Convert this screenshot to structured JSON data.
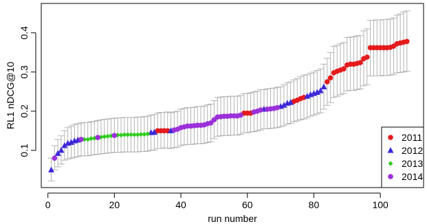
{
  "chart_data": {
    "type": "scatter",
    "title": "",
    "xlabel": "run number",
    "ylabel": "RL1 nDCG@10",
    "xlim": [
      -2,
      113
    ],
    "ylim": [
      0.005,
      0.475
    ],
    "x_ticks": [
      0,
      20,
      40,
      60,
      80,
      100
    ],
    "x_tick_labels": [
      "0",
      "20",
      "40",
      "60",
      "80",
      "100"
    ],
    "y_ticks": [
      0.1,
      0.2,
      0.3,
      0.4
    ],
    "y_tick_labels": [
      "0.1",
      "0.2",
      "0.3",
      "0.4"
    ],
    "error_bar_color": "#b3b3b3",
    "legend_position": "bottom-right",
    "legend": [
      {
        "label": "2011",
        "color": "#e41a1c",
        "marker": "circle"
      },
      {
        "label": "2012",
        "color": "#3c28d8",
        "marker": "triangle"
      },
      {
        "label": "2013",
        "color": "#2ecc1a",
        "marker": "diamond"
      },
      {
        "label": "2014",
        "color": "#9b30d9",
        "marker": "circle"
      }
    ],
    "series": [
      {
        "name": "2011",
        "color": "#e41a1c",
        "marker": "circle",
        "points": [
          [
            33,
            0.15
          ],
          [
            34,
            0.15
          ],
          [
            35,
            0.15
          ],
          [
            36,
            0.15
          ],
          [
            59,
            0.195
          ],
          [
            60,
            0.195
          ],
          [
            61,
            0.195
          ],
          [
            74,
            0.225
          ],
          [
            75,
            0.228
          ],
          [
            76,
            0.232
          ],
          [
            77,
            0.235
          ],
          [
            84,
            0.275
          ],
          [
            85,
            0.285
          ],
          [
            86,
            0.298
          ],
          [
            87,
            0.302
          ],
          [
            88,
            0.305
          ],
          [
            89,
            0.308
          ],
          [
            90,
            0.318
          ],
          [
            91,
            0.32
          ],
          [
            92,
            0.32
          ],
          [
            93,
            0.322
          ],
          [
            94,
            0.324
          ],
          [
            95,
            0.334
          ],
          [
            96,
            0.338
          ],
          [
            97,
            0.362
          ],
          [
            98,
            0.362
          ],
          [
            99,
            0.362
          ],
          [
            100,
            0.362
          ],
          [
            101,
            0.362
          ],
          [
            102,
            0.362
          ],
          [
            103,
            0.363
          ],
          [
            104,
            0.366
          ],
          [
            105,
            0.372
          ],
          [
            106,
            0.374
          ],
          [
            107,
            0.376
          ],
          [
            108,
            0.378
          ]
        ],
        "err": [
          [
            33,
            0.105,
            0.195
          ],
          [
            34,
            0.105,
            0.197
          ],
          [
            35,
            0.106,
            0.197
          ],
          [
            36,
            0.106,
            0.198
          ],
          [
            59,
            0.145,
            0.245
          ],
          [
            60,
            0.145,
            0.245
          ],
          [
            61,
            0.147,
            0.247
          ],
          [
            74,
            0.173,
            0.28
          ],
          [
            75,
            0.175,
            0.283
          ],
          [
            76,
            0.178,
            0.288
          ],
          [
            77,
            0.18,
            0.292
          ],
          [
            84,
            0.215,
            0.335
          ],
          [
            85,
            0.222,
            0.35
          ],
          [
            86,
            0.235,
            0.365
          ],
          [
            87,
            0.238,
            0.368
          ],
          [
            88,
            0.242,
            0.372
          ],
          [
            89,
            0.245,
            0.375
          ],
          [
            90,
            0.252,
            0.388
          ],
          [
            91,
            0.253,
            0.389
          ],
          [
            92,
            0.253,
            0.39
          ],
          [
            93,
            0.255,
            0.392
          ],
          [
            94,
            0.257,
            0.393
          ],
          [
            95,
            0.265,
            0.405
          ],
          [
            96,
            0.268,
            0.41
          ],
          [
            97,
            0.29,
            0.432
          ],
          [
            98,
            0.29,
            0.432
          ],
          [
            99,
            0.29,
            0.433
          ],
          [
            100,
            0.29,
            0.433
          ],
          [
            101,
            0.291,
            0.434
          ],
          [
            102,
            0.291,
            0.434
          ],
          [
            103,
            0.292,
            0.435
          ],
          [
            104,
            0.294,
            0.438
          ],
          [
            105,
            0.298,
            0.445
          ],
          [
            106,
            0.299,
            0.448
          ],
          [
            107,
            0.3,
            0.453
          ],
          [
            108,
            0.302,
            0.456
          ]
        ]
      },
      {
        "name": "2012",
        "color": "#3c28d8",
        "marker": "triangle",
        "points": [
          [
            1,
            0.05
          ],
          [
            3,
            0.092
          ],
          [
            4,
            0.1
          ],
          [
            5,
            0.112
          ],
          [
            6,
            0.118
          ],
          [
            7,
            0.12
          ],
          [
            8,
            0.124
          ],
          [
            9,
            0.126
          ],
          [
            31,
            0.145
          ],
          [
            32,
            0.146
          ],
          [
            37,
            0.15
          ],
          [
            65,
            0.205
          ],
          [
            70,
            0.212
          ],
          [
            71,
            0.215
          ],
          [
            72,
            0.22
          ],
          [
            73,
            0.222
          ],
          [
            78,
            0.238
          ],
          [
            79,
            0.242
          ],
          [
            80,
            0.245
          ],
          [
            81,
            0.248
          ],
          [
            82,
            0.252
          ],
          [
            83,
            0.262
          ]
        ],
        "err": [
          [
            1,
            0.022,
            0.08
          ],
          [
            3,
            0.058,
            0.128
          ],
          [
            4,
            0.065,
            0.137
          ],
          [
            5,
            0.075,
            0.15
          ],
          [
            6,
            0.078,
            0.158
          ],
          [
            7,
            0.08,
            0.162
          ],
          [
            8,
            0.082,
            0.166
          ],
          [
            9,
            0.084,
            0.168
          ],
          [
            31,
            0.1,
            0.19
          ],
          [
            32,
            0.101,
            0.191
          ],
          [
            37,
            0.105,
            0.196
          ],
          [
            65,
            0.155,
            0.255
          ],
          [
            70,
            0.16,
            0.262
          ],
          [
            71,
            0.163,
            0.267
          ],
          [
            72,
            0.167,
            0.272
          ],
          [
            73,
            0.169,
            0.275
          ],
          [
            78,
            0.183,
            0.293
          ],
          [
            79,
            0.187,
            0.297
          ],
          [
            80,
            0.19,
            0.3
          ],
          [
            81,
            0.193,
            0.304
          ],
          [
            82,
            0.196,
            0.308
          ],
          [
            83,
            0.205,
            0.32
          ]
        ]
      },
      {
        "name": "2013",
        "color": "#2ecc1a",
        "marker": "diamond",
        "points": [
          [
            11,
            0.128
          ],
          [
            12,
            0.128
          ],
          [
            13,
            0.13
          ],
          [
            14,
            0.131
          ],
          [
            16,
            0.134
          ],
          [
            17,
            0.135
          ],
          [
            18,
            0.136
          ],
          [
            19,
            0.137
          ],
          [
            21,
            0.139
          ],
          [
            22,
            0.139
          ],
          [
            23,
            0.14
          ],
          [
            24,
            0.14
          ],
          [
            25,
            0.14
          ],
          [
            26,
            0.14
          ],
          [
            27,
            0.14
          ],
          [
            28,
            0.141
          ],
          [
            29,
            0.141
          ],
          [
            30,
            0.142
          ]
        ],
        "err": [
          [
            11,
            0.086,
            0.171
          ],
          [
            12,
            0.086,
            0.171
          ],
          [
            13,
            0.088,
            0.173
          ],
          [
            14,
            0.089,
            0.174
          ],
          [
            16,
            0.091,
            0.178
          ],
          [
            17,
            0.092,
            0.179
          ],
          [
            18,
            0.093,
            0.18
          ],
          [
            19,
            0.094,
            0.181
          ],
          [
            21,
            0.095,
            0.183
          ],
          [
            22,
            0.095,
            0.183
          ],
          [
            23,
            0.096,
            0.184
          ],
          [
            24,
            0.096,
            0.184
          ],
          [
            25,
            0.096,
            0.184
          ],
          [
            26,
            0.096,
            0.184
          ],
          [
            27,
            0.096,
            0.185
          ],
          [
            28,
            0.097,
            0.185
          ],
          [
            29,
            0.097,
            0.186
          ],
          [
            30,
            0.098,
            0.187
          ]
        ]
      },
      {
        "name": "2014",
        "color": "#9b30d9",
        "marker": "circle",
        "points": [
          [
            2,
            0.08
          ],
          [
            10,
            0.128
          ],
          [
            15,
            0.133
          ],
          [
            20,
            0.138
          ],
          [
            38,
            0.152
          ],
          [
            39,
            0.154
          ],
          [
            40,
            0.158
          ],
          [
            41,
            0.16
          ],
          [
            42,
            0.162
          ],
          [
            43,
            0.162
          ],
          [
            44,
            0.163
          ],
          [
            45,
            0.164
          ],
          [
            46,
            0.164
          ],
          [
            47,
            0.165
          ],
          [
            48,
            0.168
          ],
          [
            49,
            0.17
          ],
          [
            50,
            0.178
          ],
          [
            51,
            0.185
          ],
          [
            52,
            0.186
          ],
          [
            53,
            0.187
          ],
          [
            54,
            0.187
          ],
          [
            55,
            0.188
          ],
          [
            56,
            0.188
          ],
          [
            57,
            0.188
          ],
          [
            58,
            0.19
          ],
          [
            62,
            0.198
          ],
          [
            63,
            0.2
          ],
          [
            64,
            0.203
          ],
          [
            66,
            0.205
          ],
          [
            67,
            0.206
          ],
          [
            68,
            0.207
          ],
          [
            69,
            0.209
          ]
        ],
        "err": [
          [
            2,
            0.05,
            0.112
          ],
          [
            10,
            0.086,
            0.17
          ],
          [
            15,
            0.09,
            0.176
          ],
          [
            20,
            0.095,
            0.182
          ],
          [
            38,
            0.107,
            0.198
          ],
          [
            39,
            0.108,
            0.2
          ],
          [
            40,
            0.112,
            0.205
          ],
          [
            41,
            0.114,
            0.207
          ],
          [
            42,
            0.115,
            0.209
          ],
          [
            43,
            0.115,
            0.209
          ],
          [
            44,
            0.116,
            0.21
          ],
          [
            45,
            0.117,
            0.212
          ],
          [
            46,
            0.117,
            0.212
          ],
          [
            47,
            0.118,
            0.213
          ],
          [
            48,
            0.12,
            0.216
          ],
          [
            49,
            0.122,
            0.218
          ],
          [
            50,
            0.13,
            0.227
          ],
          [
            51,
            0.136,
            0.235
          ],
          [
            52,
            0.137,
            0.236
          ],
          [
            53,
            0.138,
            0.237
          ],
          [
            54,
            0.138,
            0.237
          ],
          [
            55,
            0.139,
            0.238
          ],
          [
            56,
            0.139,
            0.238
          ],
          [
            57,
            0.139,
            0.238
          ],
          [
            58,
            0.141,
            0.24
          ],
          [
            62,
            0.148,
            0.249
          ],
          [
            63,
            0.15,
            0.251
          ],
          [
            64,
            0.152,
            0.255
          ],
          [
            66,
            0.155,
            0.257
          ],
          [
            67,
            0.156,
            0.258
          ],
          [
            68,
            0.157,
            0.259
          ],
          [
            69,
            0.158,
            0.261
          ]
        ]
      }
    ]
  }
}
